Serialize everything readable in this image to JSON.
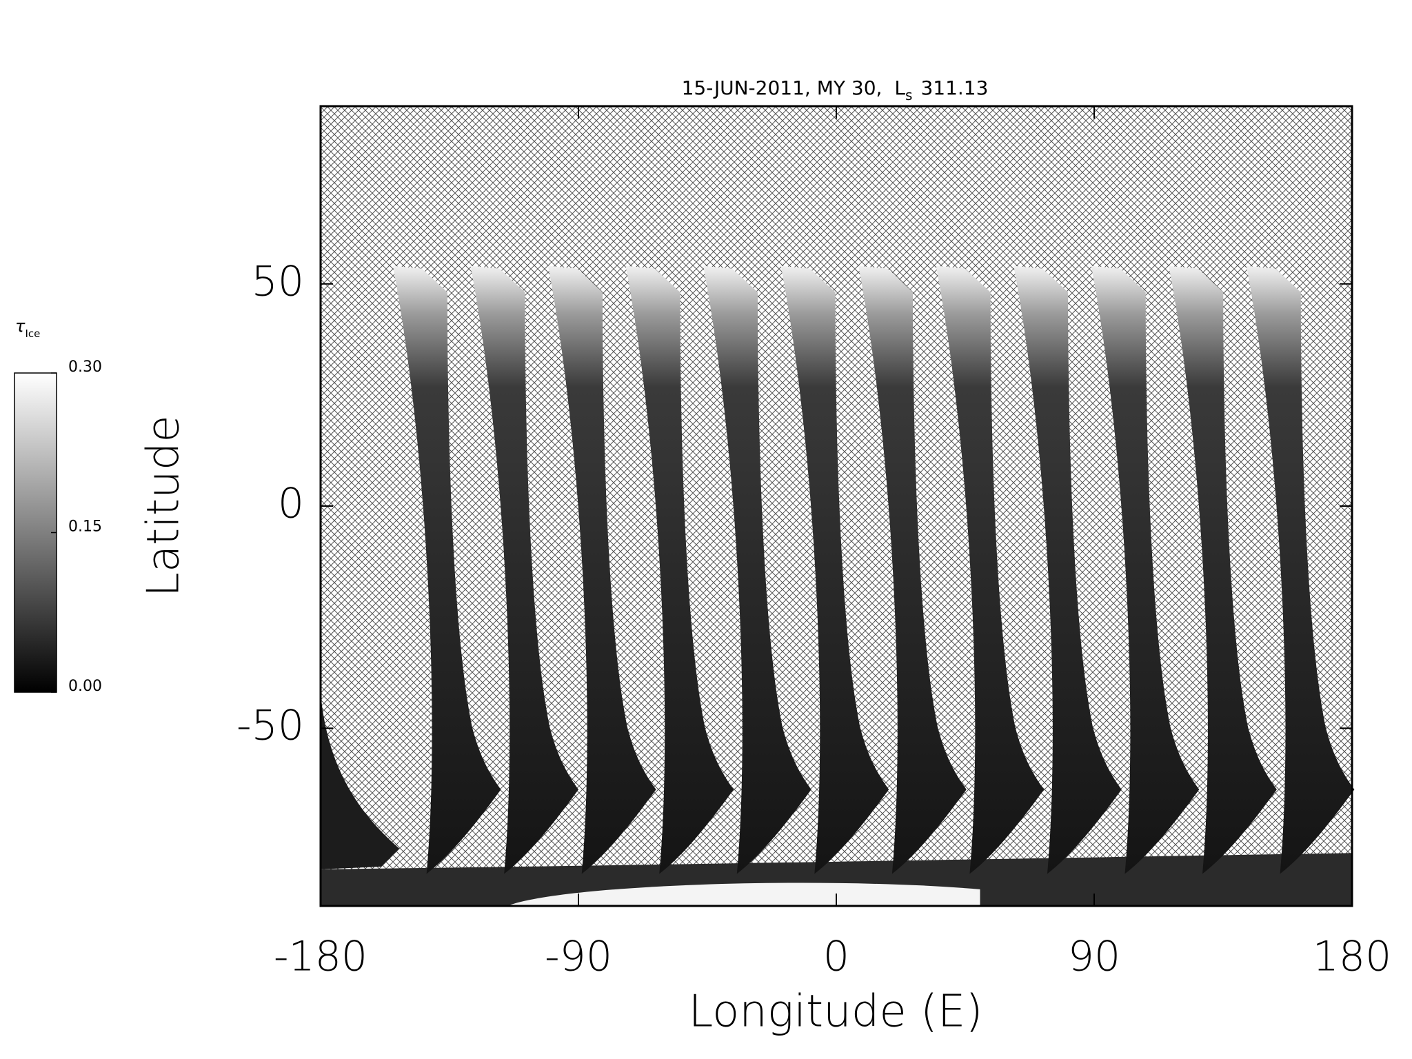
{
  "chart_data": {
    "type": "map",
    "title": "15-JUN-2011, MY 30,",
    "title_symbol": "L",
    "title_subscript": "s",
    "title_value": "311.13",
    "x_label": "Longitude (E)",
    "y_label": "Latitude",
    "xlim": [
      -180,
      180
    ],
    "xticks": [
      -180,
      -90,
      0,
      90,
      180
    ],
    "ylim": [
      -90,
      90
    ],
    "yticks": [
      -50,
      0,
      50
    ],
    "colorbar": {
      "label": "τ",
      "label_subscript": "Ice",
      "lim": [
        0,
        0.3
      ],
      "ticks": [
        {
          "value": 0,
          "label": "0.00"
        },
        {
          "value": 0.15,
          "label": "0.15"
        },
        {
          "value": 0.3,
          "label": "0.30"
        }
      ],
      "colors": [
        "#000000",
        "#ffffff"
      ]
    }
  }
}
